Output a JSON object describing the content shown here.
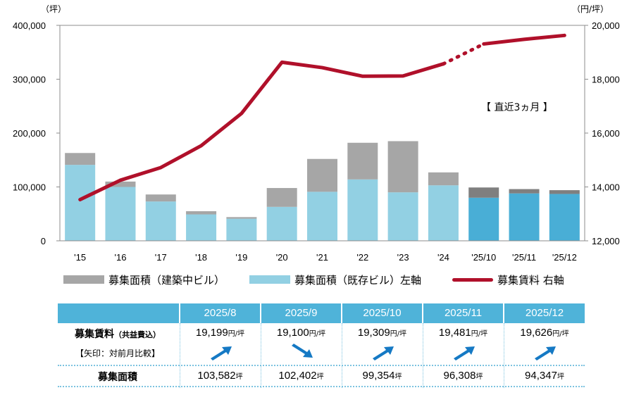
{
  "chart_data": {
    "type": "bar+line",
    "categories": [
      "'15",
      "'16",
      "'17",
      "'18",
      "'19",
      "'20",
      "'21",
      "'22",
      "'23",
      "'24",
      "'25/10",
      "'25/11",
      "'25/12"
    ],
    "series": [
      {
        "name": "募集面積（既存ビル）左軸",
        "type": "bar",
        "axis": "left",
        "values": [
          141000,
          100000,
          73000,
          49000,
          41000,
          63000,
          91000,
          114000,
          90000,
          103000,
          80000,
          88000,
          87000
        ]
      },
      {
        "name": "募集面積（建築中ビル）",
        "type": "bar",
        "axis": "left",
        "values": [
          22000,
          10000,
          13000,
          6000,
          3000,
          35000,
          61000,
          68000,
          95000,
          24000,
          19000,
          8000,
          7000
        ]
      },
      {
        "name": "募集賃料 右軸",
        "type": "line",
        "axis": "right",
        "values": [
          13530,
          14250,
          14720,
          15530,
          16730,
          18630,
          18430,
          18110,
          18120,
          18570,
          19309,
          19481,
          19626
        ]
      }
    ],
    "ylim_left": [
      0,
      400000
    ],
    "ylim_right": [
      12000,
      20000
    ],
    "left_unit": "（坪）",
    "right_unit": "（円/坪）",
    "left_ticks": [
      "0",
      "100,000",
      "200,000",
      "300,000",
      "400,000"
    ],
    "right_ticks": [
      "12,000",
      "14,000",
      "16,000",
      "18,000",
      "20,000"
    ],
    "annotation": "【 直近3ヵ月 】",
    "colors": {
      "existing": "#92d0e3",
      "existing_recent": "#49aed6",
      "construction": "#a6a6a6",
      "construction_recent": "#7f7f7f",
      "line": "#b0102a"
    },
    "legend": [
      {
        "label": "募集面積（建築中ビル）",
        "color": "#a6a6a6",
        "kind": "bar"
      },
      {
        "label": "募集面積（既存ビル）左軸",
        "color": "#92d0e3",
        "kind": "bar"
      },
      {
        "label": "募集賃料 右軸",
        "color": "#b0102a",
        "kind": "line"
      }
    ]
  },
  "table": {
    "months": [
      "2025/8",
      "2025/9",
      "2025/10",
      "2025/11",
      "2025/12"
    ],
    "rent_label": "募集賃料",
    "rent_label_sub": "（共益費込）",
    "arrow_note": "【矢印：対前月比較】",
    "rent_values": [
      "19,199",
      "19,100",
      "19,309",
      "19,481",
      "19,626"
    ],
    "rent_unit": "円/坪",
    "arrows": [
      "up",
      "down",
      "up",
      "up",
      "up"
    ],
    "area_label": "募集面積",
    "area_values": [
      "103,582",
      "102,402",
      "99,354",
      "96,308",
      "94,347"
    ],
    "area_unit": "坪"
  }
}
